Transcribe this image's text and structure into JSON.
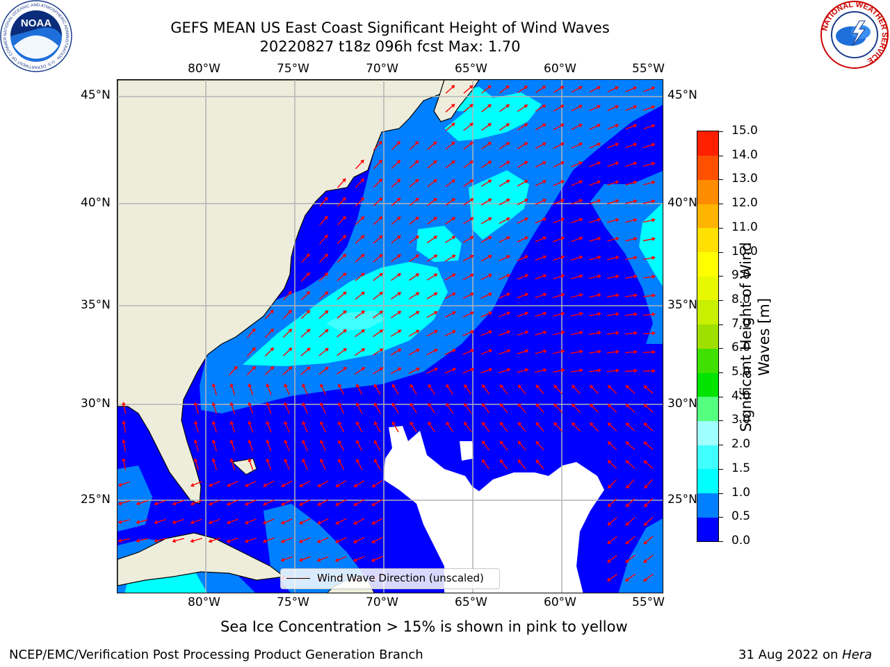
{
  "title": {
    "line1": "GEFS MEAN US East Coast Significant Height of Wind Waves",
    "line2": "20220827 t18z 096h fcst   Max: 1.70"
  },
  "map": {
    "lon_labels": [
      "80°W",
      "75°W",
      "70°W",
      "65°W",
      "60°W",
      "55°W"
    ],
    "lat_labels": [
      "45°N",
      "40°N",
      "35°N",
      "30°N",
      "25°N"
    ],
    "colors": {
      "land": "#eeeddc",
      "coast": "#000000",
      "grid": "#b4b4b4",
      "arrow": "#ff0000",
      "no_data": "#ffffff"
    },
    "legend_label": "Wind Wave Direction (unscaled)"
  },
  "colorbar": {
    "label": "Significant Height of Wind Waves [m]",
    "ticks": [
      "0.0",
      "0.5",
      "1.0",
      "1.5",
      "2.0",
      "3.0",
      "4.0",
      "5.0",
      "6.0",
      "7.0",
      "8.0",
      "9.0",
      "10.0",
      "11.0",
      "12.0",
      "13.0",
      "14.0",
      "15.0"
    ],
    "colors": [
      "#0000ff",
      "#0080ff",
      "#00ffff",
      "#40ffff",
      "#a0ffff",
      "#55ff7f",
      "#00e400",
      "#40e000",
      "#a0e000",
      "#c8f000",
      "#e8f800",
      "#ffff00",
      "#ffe000",
      "#ffb400",
      "#ff8c00",
      "#ff5000",
      "#ff2000"
    ]
  },
  "sea_ice_note": "Sea Ice Concentration > 15% is shown in pink to yellow",
  "logos": {
    "noaa": "NOAA",
    "noaa_ring": "NATIONAL OCEANIC AND ATMOSPHERIC ADMINISTRATION · U.S. DEPARTMENT OF COMMERCE",
    "nws_ring": "NATIONAL WEATHER SERVICE"
  },
  "footer": {
    "left": "NCEP/EMC/Verification Post Processing Product Generation Branch",
    "right_date": "31 Aug 2022 on ",
    "right_machine": "Hera"
  }
}
